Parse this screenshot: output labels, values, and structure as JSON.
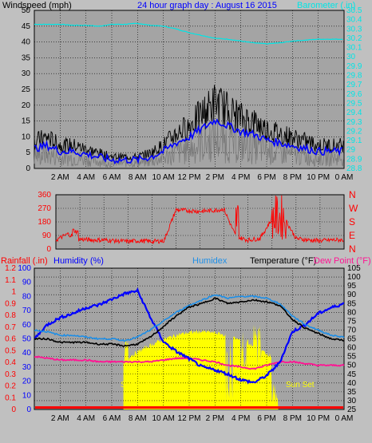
{
  "charts": {
    "wind": {
      "title": "Windspeed (mph)",
      "subtitle": "24 hour graph day : August 16 2015",
      "right_title": "Barometer (.in)",
      "y_ticks": [
        "0",
        "5",
        "10",
        "15",
        "20",
        "25",
        "30",
        "35",
        "40",
        "45",
        "50"
      ],
      "baro_ticks": [
        "28.8",
        "28.9",
        "29",
        "29.1",
        "29.2",
        "29.3",
        "29.4",
        "29.5",
        "29.6",
        "29.7",
        "29.8",
        "29.9",
        "30",
        "30.1",
        "30.2",
        "30.3",
        "30.4",
        "30.5"
      ]
    },
    "dir": {
      "y_ticks": [
        "0",
        "90",
        "180",
        "270",
        "360"
      ],
      "compass": [
        "N",
        "W",
        "S",
        "E",
        "N"
      ]
    },
    "temp": {
      "rain_label": "Rainfall (.in)",
      "hum_label": "Humidity (%)",
      "humidex_label": "Humidex",
      "temp_label": "Temperature (°F)",
      "dew_label": "Dew Point (°F)",
      "rain_ticks": [
        "0",
        "0.1",
        "0.2",
        "0.3",
        "0.4",
        "0.5",
        "0.6",
        "0.7",
        "0.8",
        "0.9",
        "1",
        "1.1",
        "1.2"
      ],
      "hum_ticks": [
        "0",
        "10",
        "20",
        "30",
        "40",
        "50",
        "60",
        "70",
        "80",
        "90",
        "100"
      ],
      "temp_ticks": [
        "25",
        "30",
        "35",
        "40",
        "45",
        "50",
        "55",
        "60",
        "65",
        "70",
        "75",
        "80",
        "85",
        "90",
        "95",
        "100",
        "105"
      ],
      "sunrise": "Sun Rise",
      "sunset": "Sun Set"
    },
    "x_labels": [
      "2 AM",
      "4 AM",
      "6 AM",
      "8 AM",
      "10 AM",
      "12 PM",
      "2 PM",
      "4 PM",
      "6 PM",
      "8 PM",
      "10 PM",
      "0 AM"
    ]
  },
  "colors": {
    "plot_bg": "#a4a4a4",
    "grid": "#000000",
    "wind": "#000000",
    "wind_avg": "#0000ff",
    "wind_gray": "#7a7a7a",
    "barometer": "#00e5e5",
    "direction": "#ff0000",
    "humidity": "#0000ff",
    "temperature": "#000000",
    "humidex": "#1e8ee6",
    "dew_point": "#ff1493",
    "solar": "#ffff00",
    "title_blue": "#0000ff",
    "rain_red": "#ff0000"
  },
  "chart_data": [
    {
      "type": "line",
      "title": "24 hour graph day : August 16 2015",
      "ylabel": "Windspeed (mph)",
      "y2label": "Barometer (.in)",
      "ylim": [
        0,
        50
      ],
      "y2lim": [
        28.8,
        30.5
      ],
      "x_hours": [
        0,
        1,
        2,
        3,
        4,
        5,
        6,
        7,
        8,
        9,
        10,
        11,
        12,
        13,
        14,
        15,
        16,
        17,
        18,
        19,
        20,
        21,
        22,
        23,
        24
      ],
      "series": [
        {
          "name": "Windspeed",
          "values": [
            7,
            8,
            6,
            6,
            5,
            4,
            3,
            3,
            3,
            4,
            6,
            9,
            11,
            14,
            17,
            15,
            13,
            12,
            10,
            9,
            8,
            7,
            6,
            6,
            6
          ]
        },
        {
          "name": "Barometer",
          "values": [
            30.35,
            30.35,
            30.35,
            30.34,
            30.34,
            30.33,
            30.35,
            30.35,
            30.36,
            30.34,
            30.33,
            30.3,
            30.26,
            30.23,
            30.2,
            30.19,
            30.17,
            30.15,
            30.14,
            30.15,
            30.17,
            30.18,
            30.19,
            30.19,
            30.19
          ]
        }
      ]
    },
    {
      "type": "line",
      "ylabel": "Wind direction",
      "ylim": [
        0,
        360
      ],
      "x_hours": [
        0,
        1,
        2,
        3,
        4,
        5,
        6,
        7,
        8,
        9,
        10,
        11,
        12,
        13,
        14,
        15,
        16,
        17,
        18,
        19,
        20,
        21,
        22,
        23,
        24
      ],
      "series": [
        {
          "name": "Direction",
          "values": [
            60,
            100,
            65,
            60,
            60,
            55,
            50,
            55,
            50,
            55,
            260,
            255,
            250,
            255,
            265,
            80,
            60,
            70,
            200,
            210,
            70,
            60,
            55,
            60,
            60
          ]
        }
      ]
    },
    {
      "type": "line",
      "ylabel": "Temperature (°F)",
      "ylim": [
        25,
        105
      ],
      "x_hours": [
        0,
        1,
        2,
        3,
        4,
        5,
        6,
        7,
        8,
        9,
        10,
        11,
        12,
        13,
        14,
        15,
        16,
        17,
        18,
        19,
        20,
        21,
        22,
        23,
        24
      ],
      "series": [
        {
          "name": "Temperature",
          "values": [
            65,
            65,
            63,
            63,
            63,
            62,
            62,
            61,
            62,
            66,
            72,
            78,
            83,
            85,
            88,
            85,
            86,
            87,
            86,
            84,
            76,
            71,
            68,
            65,
            64
          ]
        },
        {
          "name": "Humidex",
          "values": [
            70,
            69,
            67,
            67,
            66,
            65,
            65,
            64,
            66,
            70,
            75,
            80,
            84,
            87,
            90,
            88,
            89,
            89,
            88,
            85,
            78,
            73,
            70,
            67,
            66
          ]
        },
        {
          "name": "Dew Point",
          "values": [
            55,
            54,
            53,
            53,
            53,
            52,
            52,
            52,
            52,
            52,
            53,
            54,
            54,
            53,
            52,
            50,
            49,
            48,
            50,
            52,
            52,
            51,
            50,
            50,
            50
          ]
        },
        {
          "name": "Humidity",
          "values": [
            50,
            60,
            65,
            68,
            72,
            74,
            78,
            82,
            84,
            65,
            48,
            41,
            36,
            30,
            28,
            25,
            21,
            19,
            24,
            33,
            55,
            60,
            68,
            72,
            75
          ]
        }
      ]
    }
  ]
}
